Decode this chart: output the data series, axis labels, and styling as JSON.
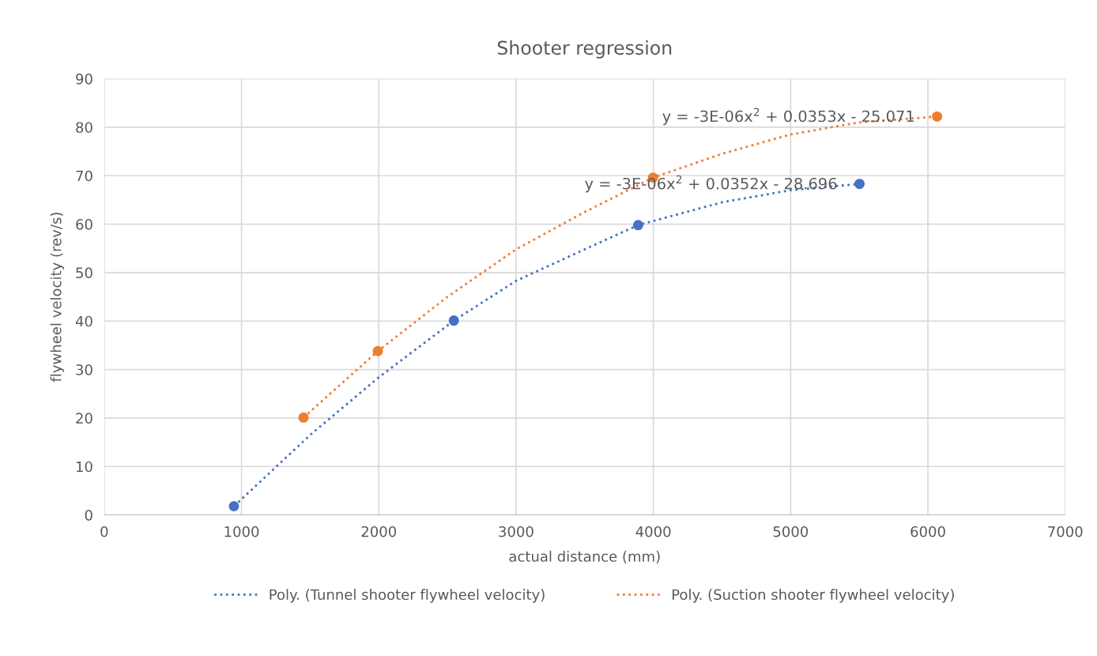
{
  "chart_data": {
    "type": "scatter",
    "title": "Shooter regression",
    "xlabel": "actual distance (mm)",
    "ylabel": "flywheel velocity (rev/s)",
    "xlim": [
      0,
      7000
    ],
    "xticks": [
      0,
      1000,
      2000,
      3000,
      4000,
      5000,
      6000,
      7000
    ],
    "ylim": [
      0,
      90
    ],
    "yticks": [
      0,
      10,
      20,
      30,
      40,
      50,
      60,
      70,
      80,
      90
    ],
    "grid": true,
    "legend": "bottom",
    "series": [
      {
        "color": "#4472c4",
        "marker": "circle",
        "x": [
          945,
          2547,
          3889,
          5502
        ],
        "values": [
          1.8,
          40.1,
          59.8,
          68.3
        ]
      },
      {
        "color": "#ed7d31",
        "marker": "circle",
        "x": [
          1452,
          1993,
          3998,
          6067
        ],
        "values": [
          20.1,
          33.8,
          69.6,
          82.2
        ]
      },
      {
        "type": "line",
        "name": "Poly. (Tunnel shooter flywheel velocity)",
        "color": "#4472c4",
        "marker": "none",
        "line_style": "dotted",
        "x": [
          945,
          1500,
          2000,
          2547,
          3000,
          3500,
          3889,
          4500,
          5000,
          5502
        ],
        "values": [
          1.8,
          16.5,
          28.4,
          40.1,
          48.3,
          54.8,
          59.8,
          64.5,
          67,
          68.3
        ]
      },
      {
        "type": "line",
        "name": "Poly. (Suction shooter flywheel velocity)",
        "color": "#ed7d31",
        "marker": "none",
        "line_style": "dotted",
        "x": [
          1452,
          1993,
          2500,
          3000,
          3500,
          3998,
          4500,
          5000,
          5500,
          6067
        ],
        "values": [
          20.1,
          33.8,
          45,
          54.8,
          62.5,
          69.6,
          74.5,
          78.5,
          81,
          82.2
        ]
      }
    ],
    "annotations": [
      "y = -3E-06x$^{2}$ + 0.0353x - 25.071",
      "y = -3E-06x$^{2}$ + 0.0352x - 28.696"
    ]
  }
}
